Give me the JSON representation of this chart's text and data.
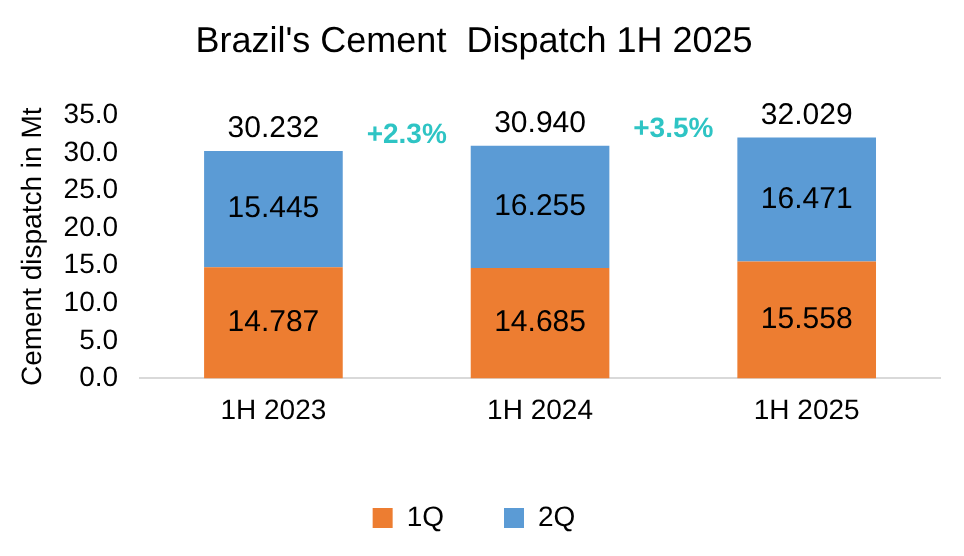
{
  "chart_data": {
    "type": "bar",
    "title": "Brazil's Cement  Dispatch 1H 2025",
    "ylabel": "Cement dispatch in Mt",
    "categories": [
      "1H 2023",
      "1H 2024",
      "1H 2025"
    ],
    "series": [
      {
        "name": "1Q",
        "color": "#ed7d31",
        "values": [
          14.787,
          14.685,
          15.558
        ]
      },
      {
        "name": "2Q",
        "color": "#5b9bd5",
        "values": [
          15.445,
          16.255,
          16.471
        ]
      }
    ],
    "stacked": true,
    "data_labels": true,
    "totals": [
      "30.232",
      "30.940",
      "32.029"
    ],
    "annotations": [
      "+2.3%",
      "+3.5%"
    ],
    "ylim": [
      0,
      35
    ],
    "yticks": [
      {
        "value": 0,
        "label": "0.0"
      },
      {
        "value": 5,
        "label": "5.0"
      },
      {
        "value": 10,
        "label": "10.0"
      },
      {
        "value": 15,
        "label": "15.0"
      },
      {
        "value": 20,
        "label": "20.0"
      },
      {
        "value": 25,
        "label": "25.0"
      },
      {
        "value": 30,
        "label": "30.0"
      },
      {
        "value": 35,
        "label": "35.0"
      }
    ],
    "grid": false,
    "legend": "bottom"
  }
}
